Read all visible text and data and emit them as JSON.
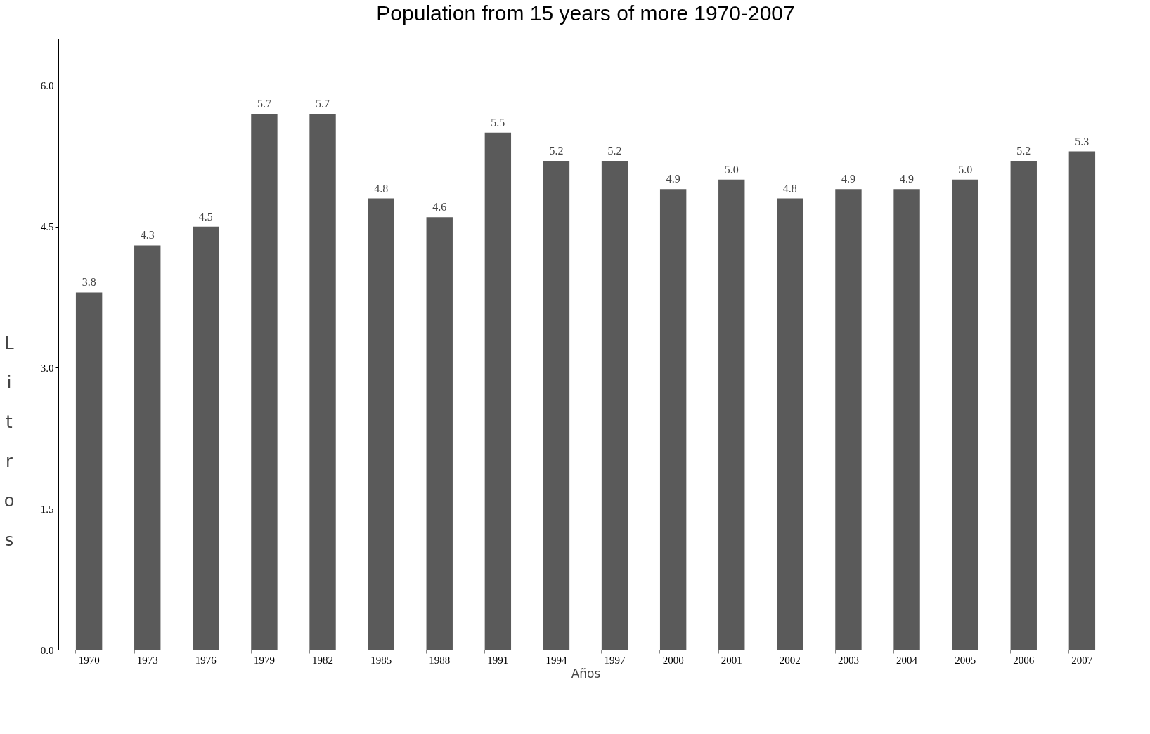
{
  "chart_data": {
    "type": "bar",
    "title": "Population from 15 years of more  1970-2007",
    "xlabel": "Años",
    "ylabel": "Litros",
    "categories": [
      "1970",
      "1973",
      "1976",
      "1979",
      "1982",
      "1985",
      "1988",
      "1991",
      "1994",
      "1997",
      "2000",
      "2001",
      "2002",
      "2003",
      "2004",
      "2005",
      "2006",
      "2007"
    ],
    "values": [
      3.8,
      4.3,
      4.5,
      5.7,
      5.7,
      4.8,
      4.6,
      5.5,
      5.2,
      5.2,
      4.9,
      5.0,
      4.8,
      4.9,
      4.9,
      5.0,
      5.2,
      5.3
    ],
    "value_labels": [
      "3.8",
      "4.3",
      "4.5",
      "5.7",
      "5.7",
      "4.8",
      "4.6",
      "5.5",
      "5.2",
      "5.2",
      "4.9",
      "5.0",
      "4.8",
      "4.9",
      "4.9",
      "5.0",
      "5.2",
      "5.3"
    ],
    "color": "#5a5a5a",
    "ylim": [
      0,
      6.5
    ],
    "yticks": [
      {
        "value": 0,
        "label": "0.0"
      },
      {
        "value": 1.5,
        "label": "1.5"
      },
      {
        "value": 3,
        "label": "3.0"
      },
      {
        "value": 4.5,
        "label": "4.5"
      },
      {
        "value": 6,
        "label": "6.0"
      }
    ],
    "grid": false
  }
}
